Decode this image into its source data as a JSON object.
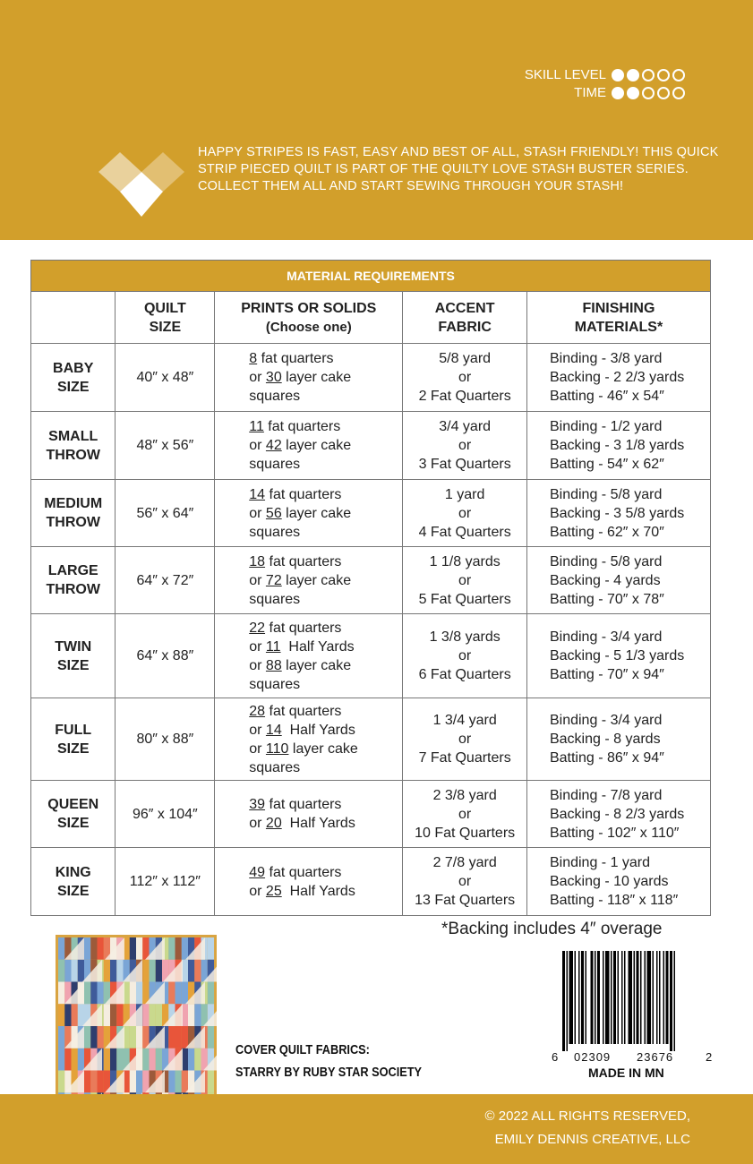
{
  "header": {
    "skill_label": "SKILL LEVEL",
    "skill_level": 2,
    "time_label": "TIME",
    "time_level": 2,
    "max_level": 5,
    "intro": "HAPPY STRIPES IS FAST, EASY AND BEST OF ALL, STASH FRIENDLY!  THIS QUICK STRIP PIECED QUILT IS PART OF THE QUILTY LOVE STASH BUSTER SERIES.  COLLECT THEM ALL AND START SEWING THROUGH YOUR STASH!"
  },
  "colors": {
    "brand": "#d29f2b"
  },
  "table": {
    "title": "MATERIAL REQUIREMENTS",
    "headers": [
      "",
      "QUILT\nSIZE",
      "PRINTS OR SOLIDS\n(Choose one)",
      "ACCENT\nFABRIC",
      "FINISHING\nMATERIALS*"
    ],
    "rows": [
      {
        "name": [
          "BABY",
          "SIZE"
        ],
        "size": "40″ x 48″",
        "prints": [
          [
            "",
            "8",
            " fat quarters"
          ],
          [
            "or ",
            "30",
            " layer cake"
          ],
          [
            "squares"
          ]
        ],
        "accent": [
          "5/8 yard",
          "or",
          "2 Fat Quarters"
        ],
        "finishing": [
          "Binding - 3/8 yard",
          "Backing - 2 2/3 yards",
          "Batting - 46″ x 54″"
        ]
      },
      {
        "name": [
          "SMALL",
          "THROW"
        ],
        "size": "48″ x 56″",
        "prints": [
          [
            "",
            "11",
            " fat quarters"
          ],
          [
            "or ",
            "42",
            " layer cake"
          ],
          [
            "squares"
          ]
        ],
        "accent": [
          "3/4 yard",
          "or",
          "3 Fat Quarters"
        ],
        "finishing": [
          "Binding - 1/2 yard",
          "Backing -  3 1/8 yards",
          "Batting -  54″ x 62″"
        ]
      },
      {
        "name": [
          "MEDIUM",
          "THROW"
        ],
        "size": "56″ x 64″",
        "prints": [
          [
            "",
            "14",
            " fat quarters"
          ],
          [
            "or ",
            "56",
            " layer cake"
          ],
          [
            "squares"
          ]
        ],
        "accent": [
          "1 yard",
          "or",
          "4 Fat Quarters"
        ],
        "finishing": [
          "Binding -  5/8 yard",
          "Backing -  3 5/8 yards",
          "Batting -  62″ x 70″"
        ]
      },
      {
        "name": [
          "LARGE",
          "THROW"
        ],
        "size": "64″ x 72″",
        "prints": [
          [
            "",
            "18",
            " fat quarters"
          ],
          [
            "or ",
            "72",
            " layer cake"
          ],
          [
            "squares"
          ]
        ],
        "accent": [
          "1 1/8 yards",
          "or",
          "5 Fat Quarters"
        ],
        "finishing": [
          "Binding -  5/8 yard",
          "Backing -  4 yards",
          "Batting -  70″ x 78″"
        ]
      },
      {
        "name": [
          "TWIN",
          "SIZE"
        ],
        "size": "64″ x 88″",
        "prints": [
          [
            "",
            "22",
            " fat quarters"
          ],
          [
            "or ",
            "11",
            "  Half Yards"
          ],
          [
            "or ",
            "88",
            " layer cake"
          ],
          [
            "squares"
          ]
        ],
        "accent": [
          "1 3/8 yards",
          "or",
          "6 Fat Quarters"
        ],
        "finishing": [
          "Binding -  3/4 yard",
          "Backing -  5 1/3 yards",
          "Batting -  70″ x 94″"
        ]
      },
      {
        "name": [
          "FULL",
          "SIZE"
        ],
        "size": "80″ x 88″",
        "prints": [
          [
            "",
            "28",
            " fat quarters"
          ],
          [
            "or ",
            "14",
            "  Half Yards"
          ],
          [
            "or ",
            "110",
            " layer cake"
          ],
          [
            "squares"
          ]
        ],
        "accent": [
          "1 3/4 yard",
          "or",
          "7 Fat Quarters"
        ],
        "finishing": [
          "Binding - 3/4 yard",
          "Backing -  8 yards",
          "Batting -  86″ x 94″"
        ]
      },
      {
        "name": [
          "QUEEN",
          "SIZE"
        ],
        "size": "96″ x 104″",
        "prints": [
          [
            "",
            "39",
            " fat quarters"
          ],
          [
            "or ",
            "20",
            "  Half Yards"
          ]
        ],
        "accent": [
          "2 3/8 yard",
          "or",
          "10 Fat Quarters"
        ],
        "finishing": [
          "Binding -  7/8 yard",
          "Backing -  8 2/3 yards",
          "Batting -  102″ x 110″"
        ]
      },
      {
        "name": [
          "KING",
          "SIZE"
        ],
        "size": "112″ x 112″",
        "prints": [
          [
            "",
            "49",
            " fat quarters"
          ],
          [
            "or ",
            "25",
            "  Half Yards"
          ]
        ],
        "accent": [
          "2 7/8 yard",
          "or",
          "13 Fat Quarters"
        ],
        "finishing": [
          "Binding -  1 yard",
          "Backing -  10 yards",
          "Batting -  118″ x 118″"
        ]
      }
    ]
  },
  "note": "*Backing includes 4″ overage",
  "cover": {
    "line1": "COVER QUILT FABRICS:",
    "line2": "STARRY BY RUBY STAR SOCIETY"
  },
  "barcode": {
    "lead": "6",
    "left": "02309",
    "right": "23676",
    "check": "2",
    "made_in": "MADE IN MN"
  },
  "footer": {
    "line1": "© 2022 ALL RIGHTS RESERVED,",
    "line2": "EMILY DENNIS CREATIVE, LLC"
  }
}
